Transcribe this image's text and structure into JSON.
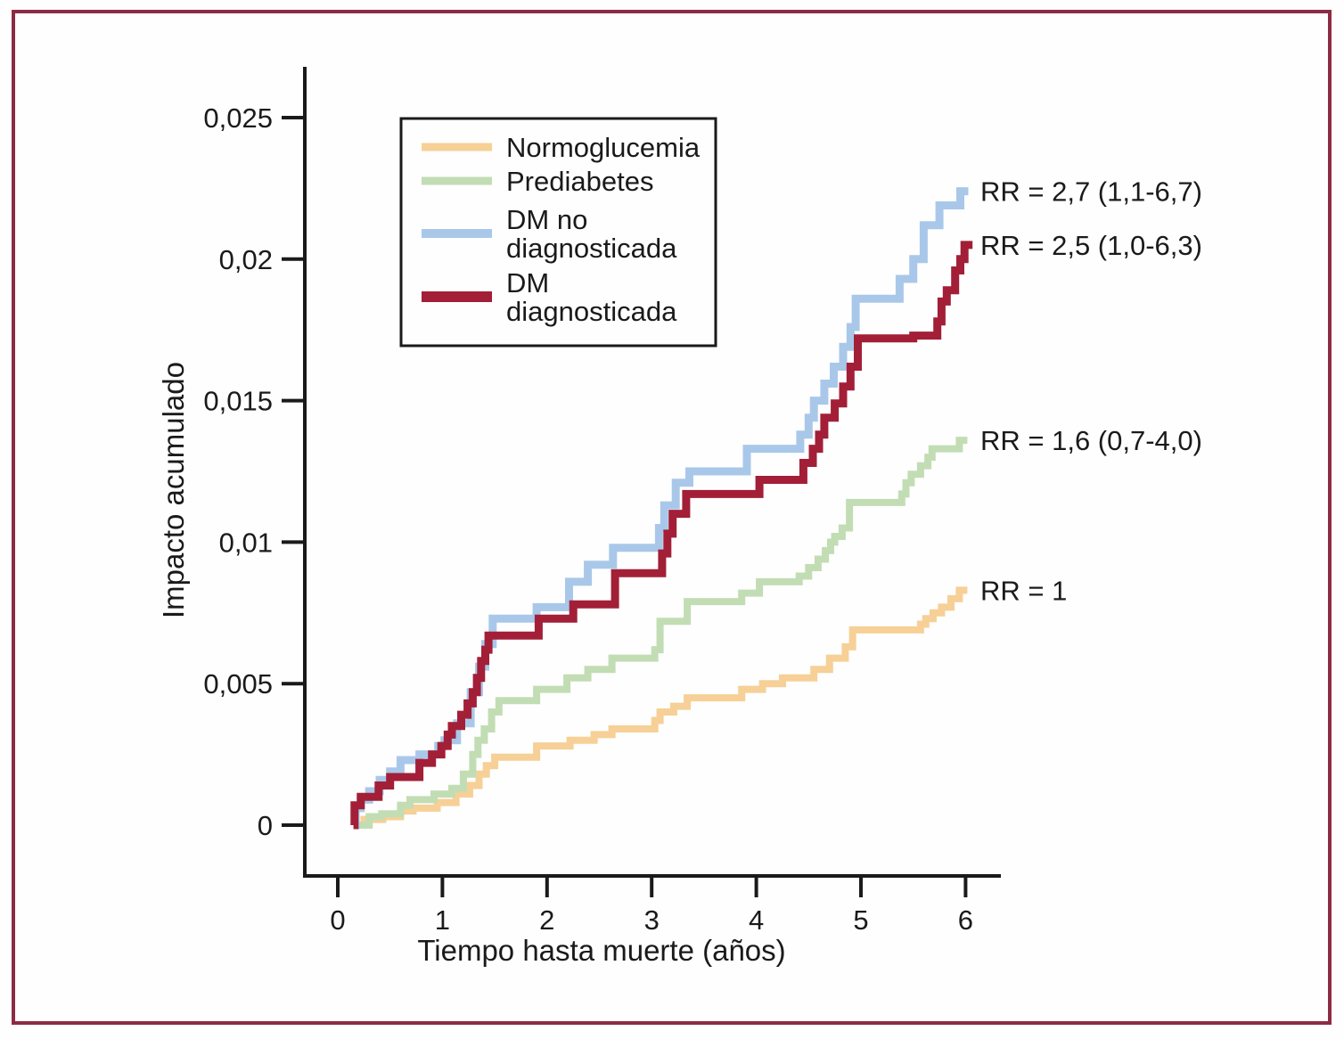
{
  "figure": {
    "border_color": "#8D2B45",
    "background": "#FEFEFE",
    "ink_color": "#1a1a1a"
  },
  "chart_data": {
    "type": "line",
    "subtype": "step-cumulative-incidence",
    "title": "",
    "xlabel": "Tiempo hasta muerte (años)",
    "ylabel": "Impacto acumulado",
    "xlim": [
      0,
      6.3
    ],
    "ylim": [
      0,
      0.027
    ],
    "grid": false,
    "legend_position": "upper-left-inside",
    "x_ticks": [
      {
        "value": 0,
        "label": "0"
      },
      {
        "value": 1,
        "label": "1"
      },
      {
        "value": 2,
        "label": "2"
      },
      {
        "value": 3,
        "label": "3"
      },
      {
        "value": 4,
        "label": "4"
      },
      {
        "value": 5,
        "label": "5"
      },
      {
        "value": 6,
        "label": "6"
      }
    ],
    "y_ticks": [
      {
        "value": 0,
        "label": "0"
      },
      {
        "value": 0.005,
        "label": "0,005"
      },
      {
        "value": 0.01,
        "label": "0,01"
      },
      {
        "value": 0.015,
        "label": "0,015"
      },
      {
        "value": 0.02,
        "label": "0,02"
      },
      {
        "value": 0.025,
        "label": "0,025"
      }
    ],
    "series": [
      {
        "name": "Normoglucemia",
        "slug": "normoglucemia",
        "legend_lines": [
          "Normoglucemia"
        ],
        "color": "#F6D096",
        "line_width": 8,
        "swatch_height": 9,
        "annotation": "RR = 1",
        "steps": [
          [
            0.15,
            0
          ],
          [
            0.25,
            0.0002
          ],
          [
            0.43,
            0.0003
          ],
          [
            0.6,
            0.0005
          ],
          [
            0.72,
            0.0006
          ],
          [
            0.95,
            0.0008
          ],
          [
            1.13,
            0.0011
          ],
          [
            1.26,
            0.0014
          ],
          [
            1.35,
            0.0018
          ],
          [
            1.42,
            0.0021
          ],
          [
            1.5,
            0.0024
          ],
          [
            1.9,
            0.0028
          ],
          [
            2.22,
            0.003
          ],
          [
            2.45,
            0.0032
          ],
          [
            2.62,
            0.0034
          ],
          [
            3.03,
            0.0037
          ],
          [
            3.08,
            0.004
          ],
          [
            3.21,
            0.0042
          ],
          [
            3.34,
            0.0045
          ],
          [
            3.86,
            0.0048
          ],
          [
            4.06,
            0.005
          ],
          [
            4.25,
            0.0052
          ],
          [
            4.55,
            0.0055
          ],
          [
            4.7,
            0.0059
          ],
          [
            4.85,
            0.0063
          ],
          [
            4.92,
            0.0069
          ],
          [
            5.57,
            0.0071
          ],
          [
            5.62,
            0.0073
          ],
          [
            5.69,
            0.0075
          ],
          [
            5.77,
            0.0077
          ],
          [
            5.86,
            0.008
          ],
          [
            5.94,
            0.0083
          ]
        ]
      },
      {
        "name": "Prediabetes",
        "slug": "prediabetes",
        "legend_lines": [
          "Prediabetes"
        ],
        "color": "#C2DDB4",
        "line_width": 8,
        "swatch_height": 9,
        "annotation": "RR = 1,6 (0,7-4,0)",
        "steps": [
          [
            0.15,
            0
          ],
          [
            0.3,
            0.0003
          ],
          [
            0.42,
            0.0004
          ],
          [
            0.6,
            0.0007
          ],
          [
            0.69,
            0.0009
          ],
          [
            0.92,
            0.0011
          ],
          [
            1.09,
            0.0013
          ],
          [
            1.2,
            0.0018
          ],
          [
            1.29,
            0.0025
          ],
          [
            1.34,
            0.003
          ],
          [
            1.4,
            0.0034
          ],
          [
            1.47,
            0.004
          ],
          [
            1.54,
            0.0044
          ],
          [
            1.9,
            0.0048
          ],
          [
            2.19,
            0.0052
          ],
          [
            2.39,
            0.0055
          ],
          [
            2.62,
            0.0059
          ],
          [
            3.03,
            0.0062
          ],
          [
            3.08,
            0.0072
          ],
          [
            3.34,
            0.0079
          ],
          [
            3.86,
            0.0082
          ],
          [
            4.03,
            0.0086
          ],
          [
            4.41,
            0.0088
          ],
          [
            4.5,
            0.0091
          ],
          [
            4.59,
            0.0094
          ],
          [
            4.66,
            0.0097
          ],
          [
            4.71,
            0.01
          ],
          [
            4.75,
            0.0102
          ],
          [
            4.82,
            0.0105
          ],
          [
            4.89,
            0.0114
          ],
          [
            5.39,
            0.0117
          ],
          [
            5.43,
            0.0121
          ],
          [
            5.48,
            0.0124
          ],
          [
            5.57,
            0.0127
          ],
          [
            5.64,
            0.013
          ],
          [
            5.68,
            0.0133
          ],
          [
            5.94,
            0.0136
          ]
        ]
      },
      {
        "name": "DM no diagnosticada",
        "slug": "dm-no-diagnosticada",
        "legend_lines": [
          "DM no",
          "diagnosticada"
        ],
        "color": "#A9C8E9",
        "line_width": 9,
        "swatch_height": 10,
        "annotation": "RR = 2,7 (1,1-6,7)",
        "steps": [
          [
            0.15,
            0
          ],
          [
            0.17,
            0.0006
          ],
          [
            0.22,
            0.0009
          ],
          [
            0.3,
            0.0012
          ],
          [
            0.4,
            0.0016
          ],
          [
            0.5,
            0.0019
          ],
          [
            0.6,
            0.0023
          ],
          [
            0.78,
            0.0025
          ],
          [
            0.96,
            0.0028
          ],
          [
            1.02,
            0.003
          ],
          [
            1.14,
            0.0036
          ],
          [
            1.27,
            0.0047
          ],
          [
            1.35,
            0.0056
          ],
          [
            1.41,
            0.0064
          ],
          [
            1.48,
            0.0073
          ],
          [
            1.9,
            0.0077
          ],
          [
            2.21,
            0.0086
          ],
          [
            2.39,
            0.0092
          ],
          [
            2.63,
            0.0098
          ],
          [
            3.07,
            0.0105
          ],
          [
            3.12,
            0.0113
          ],
          [
            3.23,
            0.0121
          ],
          [
            3.36,
            0.0125
          ],
          [
            3.91,
            0.0133
          ],
          [
            4.42,
            0.0138
          ],
          [
            4.5,
            0.0144
          ],
          [
            4.55,
            0.015
          ],
          [
            4.65,
            0.0156
          ],
          [
            4.74,
            0.0162
          ],
          [
            4.83,
            0.0169
          ],
          [
            4.9,
            0.0176
          ],
          [
            4.95,
            0.0186
          ],
          [
            5.37,
            0.0193
          ],
          [
            5.5,
            0.02
          ],
          [
            5.6,
            0.0212
          ],
          [
            5.75,
            0.0219
          ],
          [
            5.95,
            0.0224
          ]
        ]
      },
      {
        "name": "DM diagnosticada",
        "slug": "dm-diagnosticada",
        "legend_lines": [
          "DM",
          "diagnosticada"
        ],
        "color": "#A21F37",
        "line_width": 9,
        "swatch_height": 12,
        "annotation": "RR = 2,5 (1,0-6,3)",
        "steps": [
          [
            0.15,
            0
          ],
          [
            0.16,
            0.0007
          ],
          [
            0.22,
            0.001
          ],
          [
            0.39,
            0.0014
          ],
          [
            0.5,
            0.0017
          ],
          [
            0.78,
            0.0022
          ],
          [
            0.9,
            0.0025
          ],
          [
            0.99,
            0.0028
          ],
          [
            1.05,
            0.0032
          ],
          [
            1.09,
            0.0035
          ],
          [
            1.18,
            0.0039
          ],
          [
            1.24,
            0.0043
          ],
          [
            1.29,
            0.0047
          ],
          [
            1.33,
            0.0052
          ],
          [
            1.37,
            0.0058
          ],
          [
            1.41,
            0.0062
          ],
          [
            1.44,
            0.0067
          ],
          [
            1.92,
            0.0073
          ],
          [
            2.25,
            0.0078
          ],
          [
            2.65,
            0.0089
          ],
          [
            3.1,
            0.0096
          ],
          [
            3.15,
            0.0103
          ],
          [
            3.2,
            0.011
          ],
          [
            3.33,
            0.0117
          ],
          [
            4.03,
            0.0122
          ],
          [
            4.45,
            0.0128
          ],
          [
            4.54,
            0.0133
          ],
          [
            4.6,
            0.0138
          ],
          [
            4.65,
            0.0144
          ],
          [
            4.75,
            0.0149
          ],
          [
            4.83,
            0.0155
          ],
          [
            4.9,
            0.0162
          ],
          [
            4.97,
            0.0172
          ],
          [
            5.5,
            0.0173
          ],
          [
            5.73,
            0.0178
          ],
          [
            5.77,
            0.0185
          ],
          [
            5.82,
            0.0189
          ],
          [
            5.9,
            0.0196
          ],
          [
            5.95,
            0.02
          ],
          [
            5.99,
            0.0205
          ]
        ]
      }
    ]
  }
}
